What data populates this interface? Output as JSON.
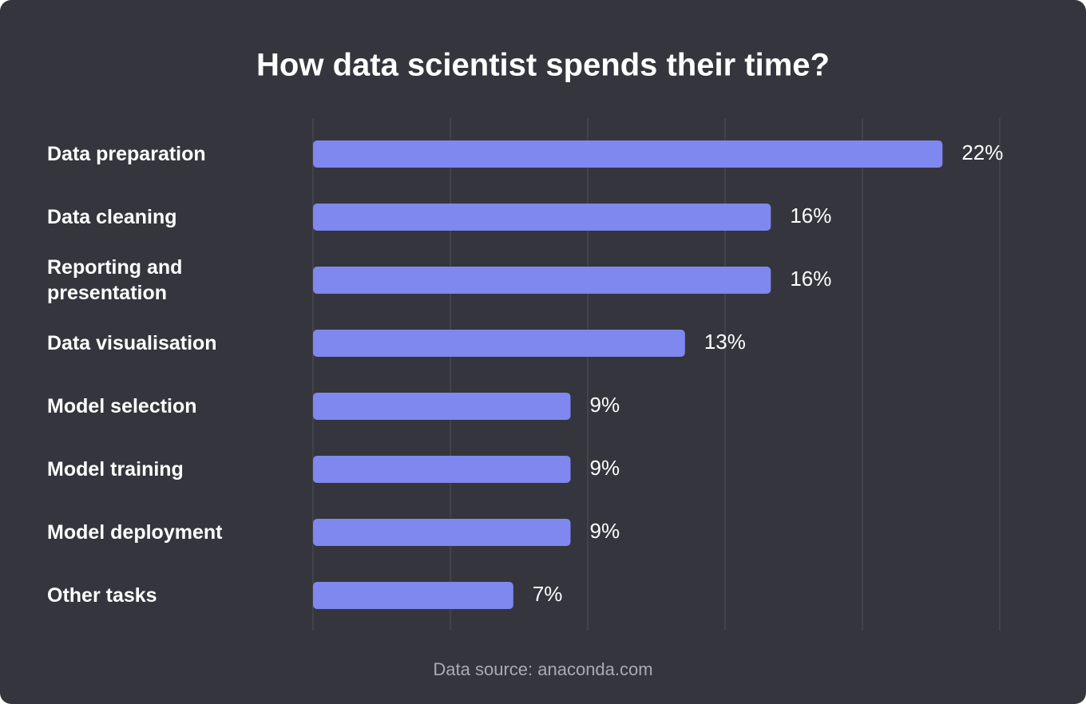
{
  "chart_data": {
    "type": "bar",
    "orientation": "horizontal",
    "title": "How data scientist spends their time?",
    "categories": [
      "Data preparation",
      "Data cleaning",
      "Reporting and presentation",
      "Data visualisation",
      "Model selection",
      "Model training",
      "Model deployment",
      "Other tasks"
    ],
    "values": [
      22,
      16,
      16,
      13,
      9,
      9,
      9,
      7
    ],
    "value_labels": [
      "22%",
      "16%",
      "16%",
      "13%",
      "9%",
      "9%",
      "9%",
      "7%"
    ],
    "color": "#7f88ee",
    "xlim": [
      0,
      24
    ],
    "xticks": [
      0,
      4.8,
      9.6,
      14.4,
      19.2,
      24
    ],
    "grid": true,
    "source": "Data source: anaconda.com"
  }
}
